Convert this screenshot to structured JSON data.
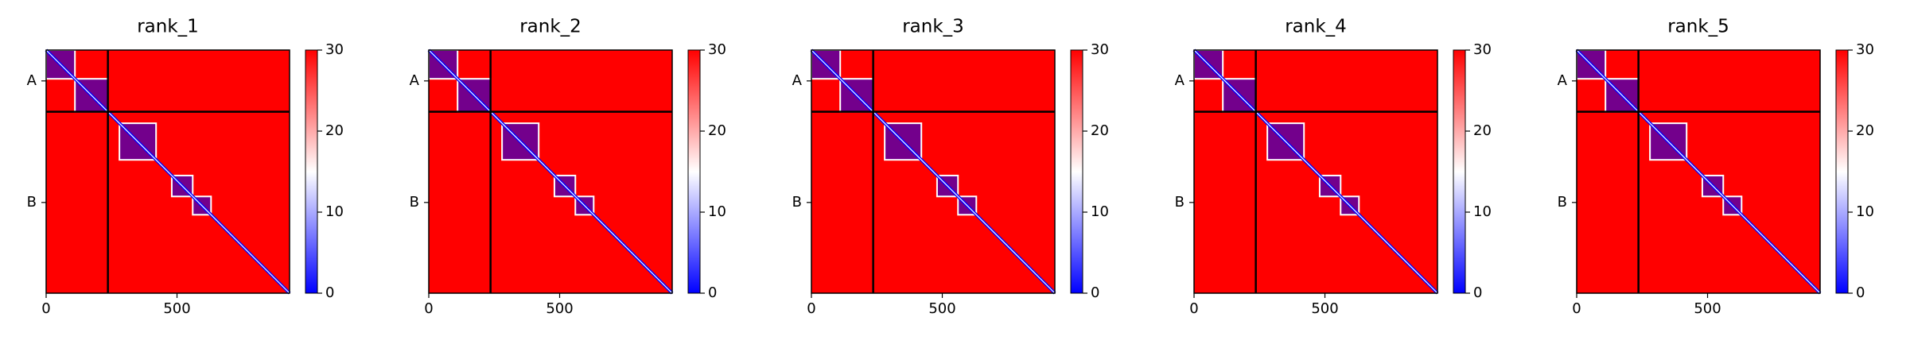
{
  "chart_data": [
    {
      "type": "heatmap",
      "title": "rank_1",
      "xlim": [
        0,
        930
      ],
      "ylim": [
        0,
        930
      ],
      "xticks": [
        0,
        500
      ],
      "yticks": [
        {
          "value": 118,
          "label": "A"
        },
        {
          "value": 583,
          "label": "B"
        }
      ],
      "chain_breaks": [
        236
      ],
      "low_error_blocks": [
        [
          0,
          110
        ],
        [
          110,
          236
        ],
        [
          280,
          420
        ],
        [
          480,
          560
        ],
        [
          560,
          630
        ]
      ],
      "clim": [
        0,
        30
      ],
      "cticks": [
        0,
        10,
        20,
        30
      ],
      "cmap": [
        "#0000ff",
        "#ffffff",
        "#ff0000"
      ]
    },
    {
      "type": "heatmap",
      "title": "rank_2",
      "xlim": [
        0,
        930
      ],
      "ylim": [
        0,
        930
      ],
      "xticks": [
        0,
        500
      ],
      "yticks": [
        {
          "value": 118,
          "label": "A"
        },
        {
          "value": 583,
          "label": "B"
        }
      ],
      "chain_breaks": [
        236
      ],
      "low_error_blocks": [
        [
          0,
          110
        ],
        [
          110,
          236
        ],
        [
          280,
          420
        ],
        [
          480,
          560
        ],
        [
          560,
          630
        ]
      ],
      "clim": [
        0,
        30
      ],
      "cticks": [
        0,
        10,
        20,
        30
      ],
      "cmap": [
        "#0000ff",
        "#ffffff",
        "#ff0000"
      ]
    },
    {
      "type": "heatmap",
      "title": "rank_3",
      "xlim": [
        0,
        930
      ],
      "ylim": [
        0,
        930
      ],
      "xticks": [
        0,
        500
      ],
      "yticks": [
        {
          "value": 118,
          "label": "A"
        },
        {
          "value": 583,
          "label": "B"
        }
      ],
      "chain_breaks": [
        236
      ],
      "low_error_blocks": [
        [
          0,
          110
        ],
        [
          110,
          236
        ],
        [
          280,
          420
        ],
        [
          480,
          560
        ],
        [
          560,
          630
        ]
      ],
      "clim": [
        0,
        30
      ],
      "cticks": [
        0,
        10,
        20,
        30
      ],
      "cmap": [
        "#0000ff",
        "#ffffff",
        "#ff0000"
      ]
    },
    {
      "type": "heatmap",
      "title": "rank_4",
      "xlim": [
        0,
        930
      ],
      "ylim": [
        0,
        930
      ],
      "xticks": [
        0,
        500
      ],
      "yticks": [
        {
          "value": 118,
          "label": "A"
        },
        {
          "value": 583,
          "label": "B"
        }
      ],
      "chain_breaks": [
        236
      ],
      "low_error_blocks": [
        [
          0,
          110
        ],
        [
          110,
          236
        ],
        [
          280,
          420
        ],
        [
          480,
          560
        ],
        [
          560,
          630
        ]
      ],
      "clim": [
        0,
        30
      ],
      "cticks": [
        0,
        10,
        20,
        30
      ],
      "cmap": [
        "#0000ff",
        "#ffffff",
        "#ff0000"
      ]
    },
    {
      "type": "heatmap",
      "title": "rank_5",
      "xlim": [
        0,
        930
      ],
      "ylim": [
        0,
        930
      ],
      "xticks": [
        0,
        500
      ],
      "yticks": [
        {
          "value": 118,
          "label": "A"
        },
        {
          "value": 583,
          "label": "B"
        }
      ],
      "chain_breaks": [
        236
      ],
      "low_error_blocks": [
        [
          0,
          110
        ],
        [
          110,
          236
        ],
        [
          280,
          420
        ],
        [
          480,
          560
        ],
        [
          560,
          630
        ]
      ],
      "clim": [
        0,
        30
      ],
      "cticks": [
        0,
        10,
        20,
        30
      ],
      "cmap": [
        "#0000ff",
        "#ffffff",
        "#ff0000"
      ]
    }
  ]
}
